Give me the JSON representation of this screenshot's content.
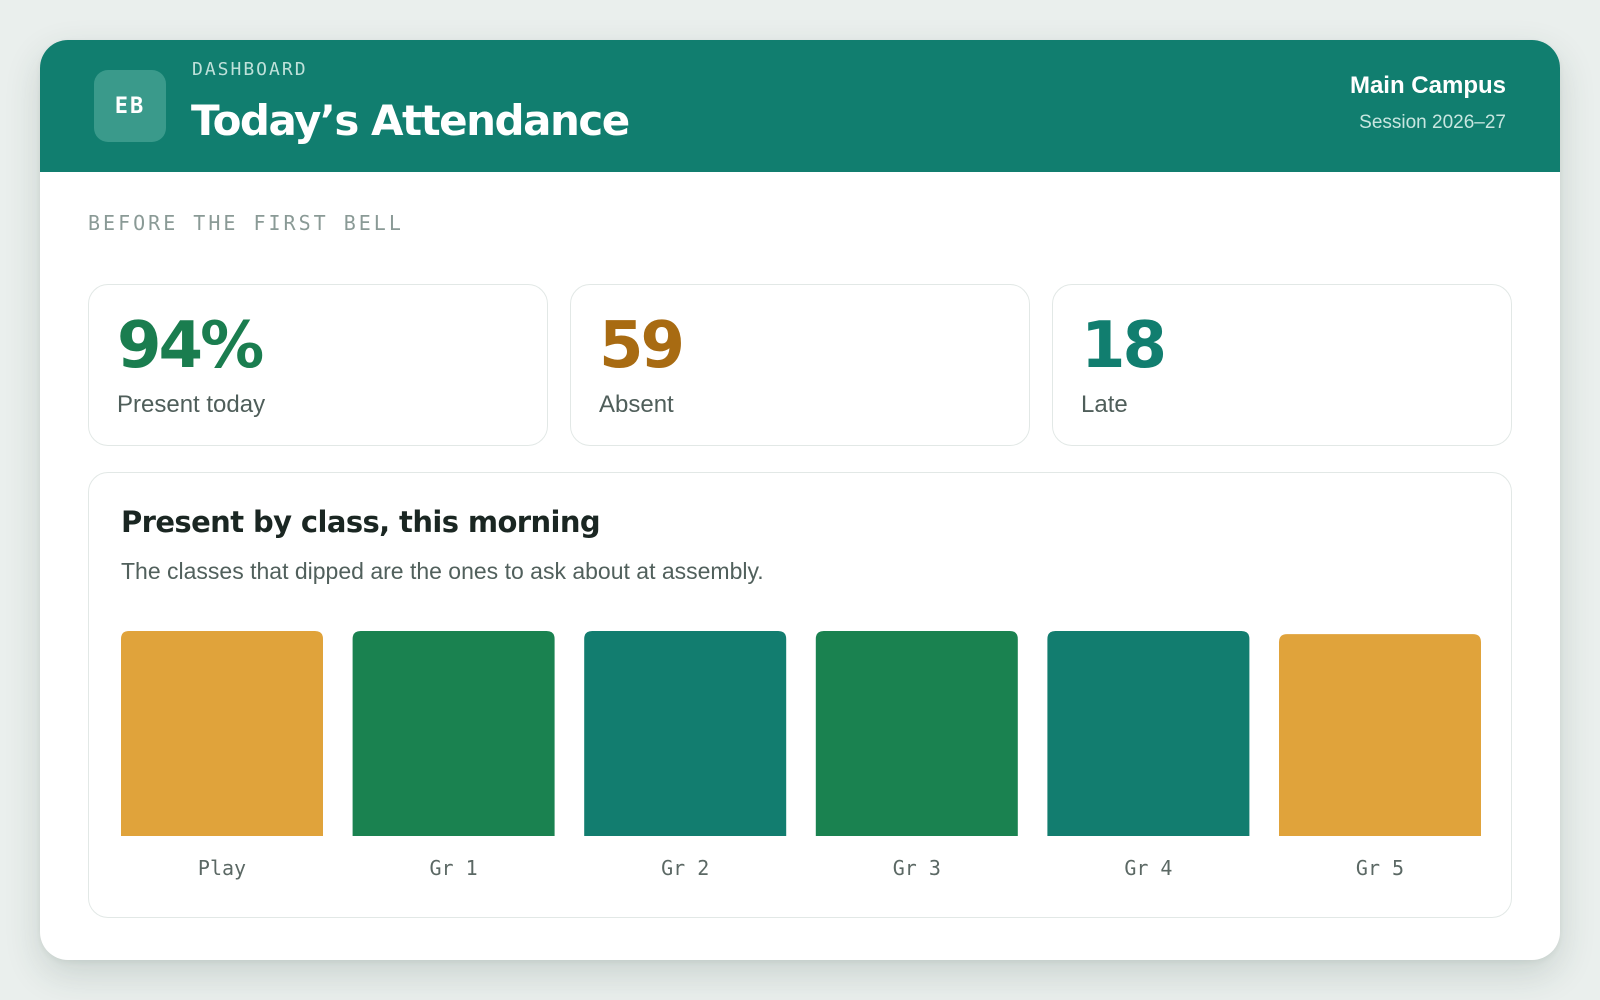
{
  "header": {
    "logo_text": "EB",
    "eyebrow": "DASHBOARD",
    "title": "Today’s Attendance",
    "campus": "Main Campus",
    "session": "Session 2026–27"
  },
  "section_label": "BEFORE THE FIRST BELL",
  "stats": [
    {
      "value": "94%",
      "label": "Present today",
      "color": "#1a7d4f"
    },
    {
      "value": "59",
      "label": "Absent",
      "color": "#a86b12"
    },
    {
      "value": "18",
      "label": "Late",
      "color": "#117e6f"
    }
  ],
  "chart": {
    "title": "Present by class, this morning",
    "subtitle": "The classes that dipped are the ones to ask about at assembly."
  },
  "chart_data": {
    "type": "bar",
    "categories": [
      "Play",
      "Gr 1",
      "Gr 2",
      "Gr 3",
      "Gr 4",
      "Gr 5"
    ],
    "values": [
      100,
      100,
      100,
      100,
      100,
      98.5
    ],
    "colors": [
      "#e0a33b",
      "#1a8250",
      "#127d6f",
      "#1a8250",
      "#127d6f",
      "#e0a33b"
    ],
    "ylim": [
      0,
      100
    ],
    "grid": false,
    "legend": "none"
  },
  "colors": {
    "header_bg": "#117e6f",
    "accent_green": "#1a7d4f",
    "accent_amber": "#a86b12",
    "accent_teal": "#117e6f"
  }
}
